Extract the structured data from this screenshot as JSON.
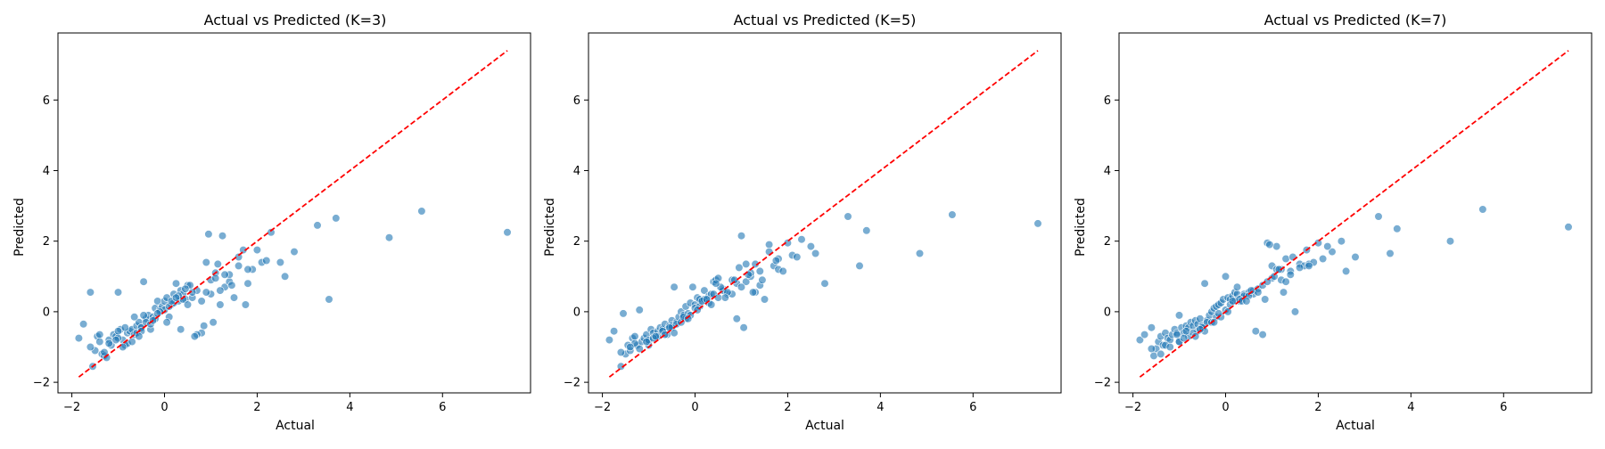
{
  "chart_data": [
    {
      "type": "scatter",
      "title": "Actual vs Predicted (K=3)",
      "xlabel": "Actual",
      "ylabel": "Predicted",
      "xlim": [
        -2.3,
        7.9
      ],
      "ylim": [
        -2.3,
        7.9
      ],
      "xticks": [
        -2,
        0,
        2,
        4,
        6
      ],
      "yticks": [
        -2,
        0,
        2,
        4,
        6
      ],
      "grid": false,
      "point_color": "#1f77b4",
      "reference_line": {
        "x": [
          -1.85,
          7.4
        ],
        "y": [
          -1.85,
          7.4
        ],
        "color": "#ff0000",
        "style": "dashed"
      },
      "x": [
        -1.85,
        -1.75,
        -1.6,
        -1.55,
        -1.5,
        -1.45,
        -1.4,
        -1.35,
        -1.3,
        -1.25,
        -1.2,
        -1.15,
        -1.1,
        -1.05,
        -1.0,
        -0.95,
        -0.9,
        -0.85,
        -0.8,
        -0.75,
        -0.7,
        -0.65,
        -0.6,
        -0.55,
        -0.5,
        -0.45,
        -0.4,
        -0.35,
        -0.3,
        -0.25,
        -0.2,
        -0.15,
        -0.1,
        -0.05,
        0.0,
        0.05,
        0.1,
        0.15,
        0.2,
        0.25,
        0.3,
        0.35,
        0.4,
        0.45,
        0.5,
        0.6,
        0.7,
        0.8,
        0.9,
        1.0,
        1.1,
        1.2,
        1.3,
        1.4,
        1.5,
        1.6,
        1.7,
        1.8,
        1.9,
        2.0,
        2.1,
        2.3,
        2.5,
        2.8,
        3.3,
        3.55,
        3.7,
        4.85,
        5.55,
        7.4,
        -1.6,
        -1.3,
        -1.0,
        -0.8,
        -0.6,
        -0.5,
        -0.4,
        -0.2,
        0.0,
        0.2,
        0.4,
        0.6,
        0.8,
        1.0,
        1.2,
        1.4,
        1.6,
        1.8,
        -1.4,
        -1.2,
        -1.0,
        -0.9,
        -0.7,
        -0.5,
        -0.3,
        -0.1,
        0.1,
        0.3,
        0.5,
        0.7,
        0.9,
        1.1,
        1.3,
        0.95,
        1.25,
        1.75,
        -0.45,
        0.05,
        0.35,
        0.65,
        0.85,
        1.05,
        -0.65,
        -0.25,
        0.15,
        -1.05,
        -0.85,
        -0.55,
        0.25,
        0.55,
        -0.15,
        0.45,
        1.15,
        1.45,
        2.2,
        2.6
      ],
      "y": [
        -0.75,
        -0.35,
        0.55,
        -1.55,
        -1.1,
        -0.7,
        -0.85,
        -1.2,
        -1.25,
        -1.3,
        -0.8,
        -0.95,
        -0.65,
        -0.7,
        0.55,
        -0.5,
        -0.8,
        -0.95,
        -0.6,
        -0.55,
        -0.5,
        -0.65,
        -0.4,
        -0.3,
        -0.45,
        0.85,
        -0.2,
        -0.1,
        -0.5,
        -0.15,
        0.1,
        0.3,
        0.05,
        0.15,
        0.3,
        0.4,
        -0.15,
        0.2,
        0.5,
        0.8,
        0.3,
        0.6,
        0.5,
        0.35,
        0.75,
        0.4,
        0.6,
        0.3,
        1.4,
        0.5,
        1.1,
        0.2,
        0.7,
        0.85,
        0.4,
        1.3,
        1.75,
        0.8,
        1.2,
        1.75,
        1.4,
        2.25,
        1.4,
        1.7,
        2.45,
        0.35,
        2.65,
        2.1,
        2.85,
        2.25,
        -1.0,
        -1.15,
        -0.75,
        -0.9,
        -0.6,
        -0.45,
        -0.3,
        -0.2,
        0.05,
        0.25,
        0.35,
        0.55,
        -0.6,
        0.9,
        0.6,
        1.05,
        1.55,
        1.2,
        -0.65,
        -0.9,
        -0.55,
        -1.0,
        -0.85,
        -0.55,
        -0.35,
        0.0,
        0.15,
        0.45,
        0.2,
        -0.65,
        0.55,
        0.95,
        1.05,
        2.2,
        2.15,
        0.2,
        -0.1,
        -0.3,
        -0.5,
        -0.7,
        -0.4,
        -0.3,
        -0.15,
        -0.25,
        0.3,
        -0.8,
        -0.45,
        -0.7,
        0.4,
        0.75,
        -0.05,
        0.65,
        1.35,
        0.75,
        1.45,
        1.0
      ]
    },
    {
      "type": "scatter",
      "title": "Actual vs Predicted (K=5)",
      "xlabel": "Actual",
      "ylabel": "Predicted",
      "xlim": [
        -2.3,
        7.9
      ],
      "ylim": [
        -2.3,
        7.9
      ],
      "xticks": [
        -2,
        0,
        2,
        4,
        6
      ],
      "yticks": [
        -2,
        0,
        2,
        4,
        6
      ],
      "grid": false,
      "point_color": "#1f77b4",
      "reference_line": {
        "x": [
          -1.85,
          7.4
        ],
        "y": [
          -1.85,
          7.4
        ],
        "color": "#ff0000",
        "style": "dashed"
      },
      "x": [
        -1.85,
        -1.75,
        -1.6,
        -1.55,
        -1.5,
        -1.45,
        -1.4,
        -1.35,
        -1.3,
        -1.25,
        -1.2,
        -1.15,
        -1.1,
        -1.05,
        -1.0,
        -0.95,
        -0.9,
        -0.85,
        -0.8,
        -0.75,
        -0.7,
        -0.65,
        -0.6,
        -0.55,
        -0.5,
        -0.45,
        -0.4,
        -0.35,
        -0.3,
        -0.25,
        -0.2,
        -0.15,
        -0.1,
        -0.05,
        0.0,
        0.05,
        0.1,
        0.15,
        0.2,
        0.25,
        0.3,
        0.35,
        0.4,
        0.45,
        0.5,
        0.6,
        0.7,
        0.8,
        0.9,
        1.0,
        1.1,
        1.2,
        1.3,
        1.4,
        1.5,
        1.6,
        1.7,
        1.8,
        1.9,
        2.0,
        2.1,
        2.3,
        2.5,
        2.8,
        3.3,
        3.55,
        3.7,
        4.85,
        5.55,
        7.4,
        -1.6,
        -1.3,
        -1.0,
        -0.8,
        -0.6,
        -0.5,
        -0.4,
        -0.2,
        0.0,
        0.2,
        0.4,
        0.6,
        0.8,
        1.0,
        1.2,
        1.4,
        1.6,
        1.8,
        -1.4,
        -1.2,
        -1.0,
        -0.9,
        -0.7,
        -0.5,
        -0.3,
        -0.1,
        0.1,
        0.3,
        0.5,
        0.7,
        0.9,
        1.1,
        1.3,
        0.95,
        1.25,
        1.75,
        -0.45,
        0.05,
        0.35,
        0.65,
        0.85,
        1.05,
        -0.65,
        -0.25,
        0.15,
        -1.05,
        -0.85,
        -0.55,
        0.25,
        0.55,
        -0.15,
        0.45,
        1.15,
        1.45,
        2.2,
        2.6
      ],
      "y": [
        -0.8,
        -0.55,
        -1.55,
        -0.05,
        -1.2,
        -0.95,
        -1.1,
        -0.75,
        -0.7,
        -0.95,
        0.05,
        -0.85,
        -0.75,
        -0.65,
        -0.95,
        -0.5,
        -0.6,
        -0.75,
        -0.55,
        -0.45,
        -0.5,
        -0.35,
        -0.5,
        -0.4,
        -0.25,
        0.7,
        -0.3,
        -0.15,
        0.0,
        -0.1,
        0.15,
        -0.05,
        0.25,
        0.7,
        0.2,
        0.4,
        0.35,
        0.3,
        0.6,
        0.35,
        0.45,
        0.5,
        0.85,
        0.9,
        0.95,
        0.65,
        0.5,
        0.9,
        0.8,
        2.15,
        0.85,
        1.0,
        1.35,
        1.15,
        0.35,
        1.9,
        1.3,
        1.2,
        1.15,
        1.95,
        1.6,
        2.05,
        1.85,
        0.8,
        2.7,
        1.3,
        2.3,
        1.65,
        2.75,
        2.5,
        -1.15,
        -0.9,
        -0.85,
        -0.7,
        -0.65,
        -0.4,
        -0.35,
        -0.2,
        0.1,
        0.35,
        0.5,
        0.6,
        0.5,
        0.7,
        1.1,
        0.75,
        1.7,
        1.5,
        -1.0,
        -1.05,
        -0.8,
        -0.75,
        -0.55,
        -0.45,
        -0.3,
        -0.1,
        0.15,
        0.25,
        0.4,
        0.55,
        -0.2,
        1.35,
        0.55,
        1.25,
        0.55,
        1.45,
        -0.6,
        0.05,
        0.2,
        0.4,
        0.9,
        -0.45,
        -0.65,
        -0.15,
        0.3,
        -0.85,
        -0.7,
        -0.45,
        0.35,
        0.7,
        -0.2,
        0.8,
        1.05,
        0.9,
        1.55,
        1.65
      ]
    },
    {
      "type": "scatter",
      "title": "Actual vs Predicted (K=7)",
      "xlabel": "Actual",
      "ylabel": "Predicted",
      "xlim": [
        -2.3,
        7.9
      ],
      "ylim": [
        -2.3,
        7.9
      ],
      "xticks": [
        -2,
        0,
        2,
        4,
        6
      ],
      "yticks": [
        -2,
        0,
        2,
        4,
        6
      ],
      "grid": false,
      "point_color": "#1f77b4",
      "reference_line": {
        "x": [
          -1.85,
          7.4
        ],
        "y": [
          -1.85,
          7.4
        ],
        "color": "#ff0000",
        "style": "dashed"
      },
      "x": [
        -1.85,
        -1.75,
        -1.6,
        -1.55,
        -1.5,
        -1.45,
        -1.4,
        -1.35,
        -1.3,
        -1.25,
        -1.2,
        -1.15,
        -1.1,
        -1.05,
        -1.0,
        -0.95,
        -0.9,
        -0.85,
        -0.8,
        -0.75,
        -0.7,
        -0.65,
        -0.6,
        -0.55,
        -0.5,
        -0.45,
        -0.4,
        -0.35,
        -0.3,
        -0.25,
        -0.2,
        -0.15,
        -0.1,
        -0.05,
        0.0,
        0.05,
        0.1,
        0.15,
        0.2,
        0.25,
        0.3,
        0.35,
        0.4,
        0.45,
        0.5,
        0.6,
        0.7,
        0.8,
        0.9,
        1.0,
        1.1,
        1.2,
        1.3,
        1.4,
        1.5,
        1.6,
        1.7,
        1.8,
        1.9,
        2.0,
        2.1,
        2.3,
        2.5,
        2.8,
        3.3,
        3.55,
        3.7,
        4.85,
        5.55,
        7.4,
        -1.6,
        -1.3,
        -1.0,
        -0.8,
        -0.6,
        -0.5,
        -0.4,
        -0.2,
        0.0,
        0.2,
        0.4,
        0.6,
        0.8,
        1.0,
        1.2,
        1.4,
        1.6,
        1.8,
        -1.4,
        -1.2,
        -1.0,
        -0.9,
        -0.7,
        -0.5,
        -0.3,
        -0.1,
        0.1,
        0.3,
        0.5,
        0.7,
        0.9,
        1.1,
        1.3,
        0.95,
        1.25,
        1.75,
        -0.45,
        0.05,
        0.35,
        0.65,
        0.85,
        1.05,
        -0.65,
        -0.25,
        0.15,
        -1.05,
        -0.85,
        -0.55,
        0.25,
        0.55,
        -0.15,
        0.45,
        1.15,
        1.45,
        2.2,
        2.6
      ],
      "y": [
        -0.8,
        -0.65,
        -0.45,
        -1.25,
        -1.05,
        -0.85,
        -0.7,
        -0.95,
        -0.6,
        -0.75,
        -0.8,
        -0.65,
        -0.5,
        -0.6,
        -0.1,
        -0.45,
        -0.6,
        -0.4,
        -0.45,
        -0.3,
        -0.4,
        -0.25,
        -0.35,
        -0.2,
        -0.45,
        0.8,
        -0.25,
        -0.1,
        0.0,
        0.1,
        0.15,
        0.2,
        0.25,
        0.35,
        1.0,
        0.4,
        0.35,
        0.45,
        0.55,
        0.5,
        0.3,
        0.4,
        0.5,
        0.45,
        0.55,
        0.6,
        0.65,
        -0.65,
        1.95,
        1.3,
        1.85,
        1.2,
        1.5,
        1.15,
        0.0,
        1.35,
        1.3,
        1.35,
        1.4,
        1.95,
        1.5,
        1.7,
        2.0,
        1.55,
        2.7,
        1.65,
        2.35,
        2.0,
        2.9,
        2.4,
        -1.05,
        -0.95,
        -0.85,
        -0.7,
        -0.55,
        -0.4,
        -0.3,
        -0.15,
        0.05,
        0.3,
        0.45,
        0.5,
        0.75,
        0.95,
        0.9,
        1.05,
        1.25,
        1.3,
        -1.2,
        -1.0,
        -0.85,
        -0.75,
        -0.6,
        -0.45,
        -0.3,
        -0.15,
        0.2,
        0.35,
        0.45,
        0.55,
        0.85,
        1.2,
        0.85,
        1.9,
        0.55,
        1.75,
        -0.55,
        0.0,
        0.3,
        -0.55,
        0.35,
        1.0,
        -0.7,
        -0.3,
        0.3,
        -0.65,
        -0.55,
        -0.5,
        0.7,
        0.6,
        -0.05,
        0.3,
        1.2,
        1.55,
        1.85,
        1.15
      ]
    }
  ]
}
